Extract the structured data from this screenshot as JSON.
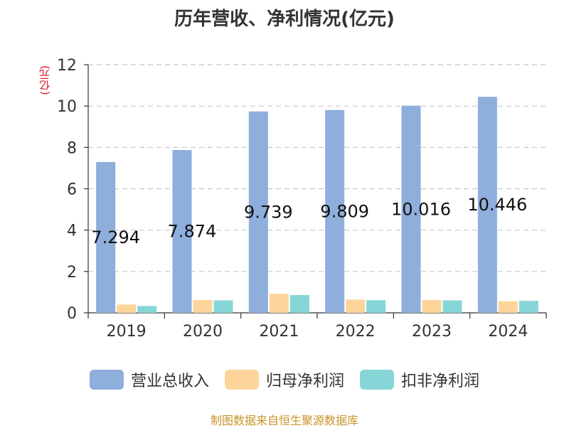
{
  "chart_data": {
    "type": "bar",
    "title": "历年营收、净利情况(亿元)",
    "ylabel": "(亿元)",
    "categories": [
      "2019",
      "2020",
      "2021",
      "2022",
      "2023",
      "2024"
    ],
    "ylim": [
      0,
      12
    ],
    "yticks": [
      0,
      2,
      4,
      6,
      8,
      10,
      12
    ],
    "grid": true,
    "legend_position": "bottom",
    "series": [
      {
        "name": "营业总收入",
        "color": "#8eaedc",
        "values": [
          7.294,
          7.874,
          9.739,
          9.809,
          10.016,
          10.446
        ],
        "labels": [
          "7.294",
          "7.874",
          "9.739",
          "9.809",
          "10.016",
          "10.446"
        ]
      },
      {
        "name": "归母净利润",
        "color": "#fdd59a",
        "values": [
          0.4,
          0.62,
          0.92,
          0.64,
          0.62,
          0.56
        ]
      },
      {
        "name": "扣非净利润",
        "color": "#86d6d8",
        "values": [
          0.33,
          0.6,
          0.86,
          0.61,
          0.6,
          0.58
        ]
      }
    ]
  },
  "source": "制图数据来自恒生聚源数据库"
}
